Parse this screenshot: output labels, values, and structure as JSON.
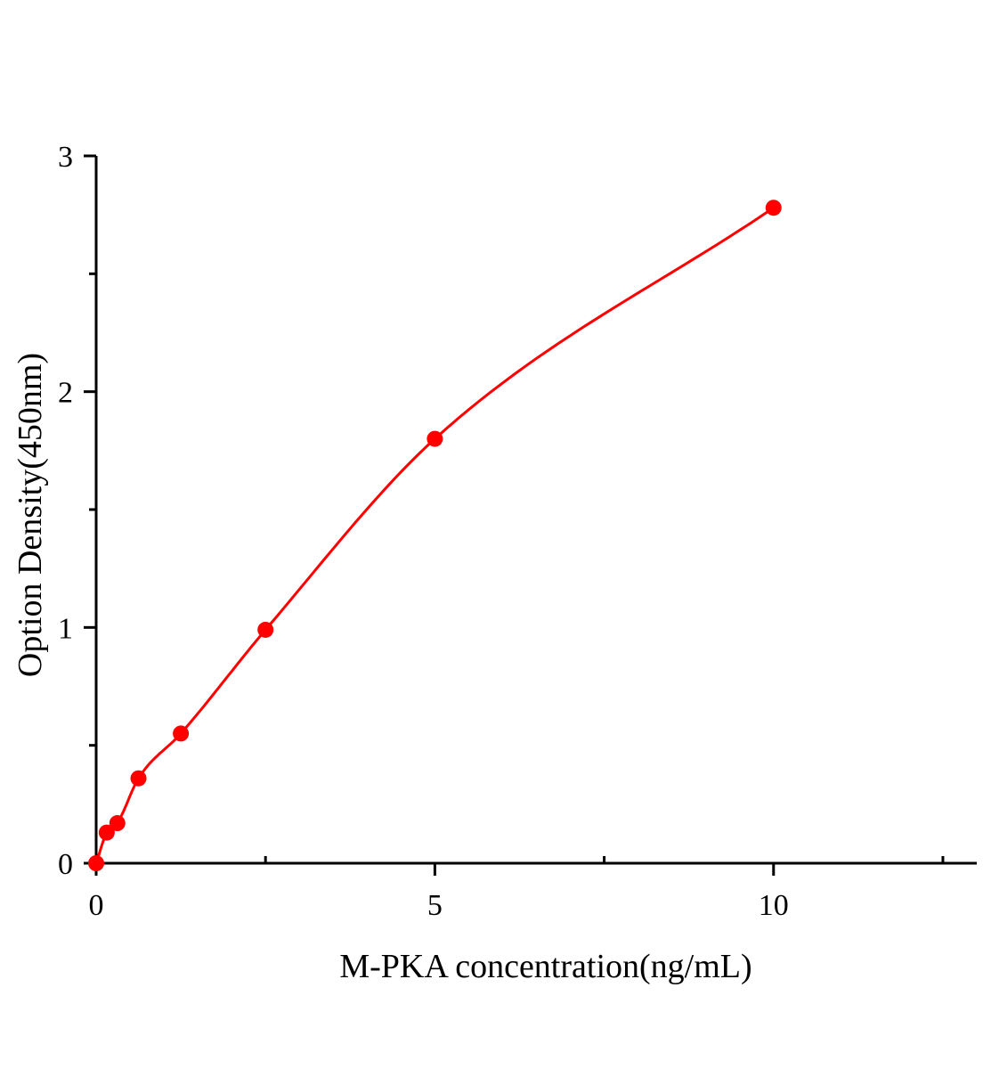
{
  "chart_data": {
    "type": "scatter",
    "title": "",
    "xlabel": "M-PKA concentration(ng/mL)",
    "ylabel": "Option Density(450nm)",
    "xlim": [
      0,
      13
    ],
    "ylim": [
      0,
      3
    ],
    "x_ticks": [
      0,
      5,
      10
    ],
    "x_minor_ticks": [
      2.5,
      7.5,
      12.5
    ],
    "y_ticks": [
      0,
      1,
      2,
      3
    ],
    "y_minor_ticks": [
      0.5,
      1.5,
      2.5
    ],
    "grid": false,
    "legend": "none",
    "series": [
      {
        "color": "#ff0000",
        "marker": "circle",
        "fit_line": true,
        "x": [
          0,
          0.156,
          0.3125,
          0.625,
          1.25,
          2.5,
          5,
          10
        ],
        "y": [
          0.0,
          0.13,
          0.17,
          0.36,
          0.55,
          0.99,
          1.8,
          2.78
        ]
      }
    ]
  }
}
